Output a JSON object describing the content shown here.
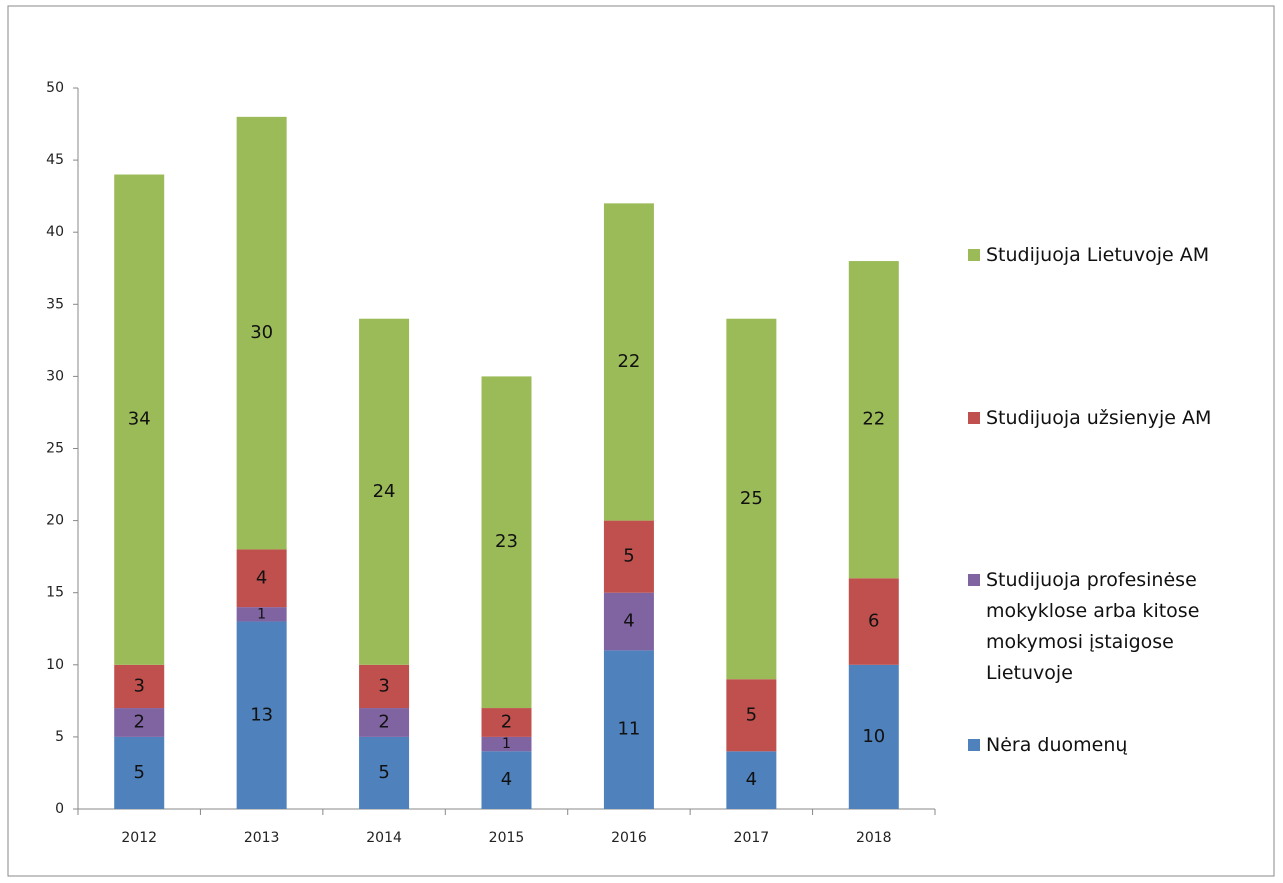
{
  "chart_data": {
    "type": "stacked_bar",
    "categories": [
      "2012",
      "2013",
      "2014",
      "2015",
      "2016",
      "2017",
      "2018"
    ],
    "series": [
      {
        "name": "Nėra duomenų",
        "color": "#4f81bd",
        "values": [
          5,
          13,
          5,
          4,
          11,
          4,
          10
        ]
      },
      {
        "name": "Studijuoja profesinėse mokyklose arba kitose mokymosi įstaigose Lietuvoje",
        "color": "#8064a2",
        "values": [
          2,
          1,
          2,
          1,
          4,
          0,
          0
        ]
      },
      {
        "name": "Studijuoja užsienyje AM",
        "color": "#c0504d",
        "values": [
          3,
          4,
          3,
          2,
          5,
          5,
          6
        ]
      },
      {
        "name": "Studijuoja Lietuvoje AM",
        "color": "#9bbb59",
        "values": [
          34,
          30,
          24,
          23,
          22,
          25,
          22
        ]
      }
    ],
    "ylim": [
      0,
      50
    ],
    "yticks": [
      0,
      5,
      10,
      15,
      20,
      25,
      30,
      35,
      40,
      45,
      50
    ],
    "grid": false,
    "legend": "right"
  }
}
